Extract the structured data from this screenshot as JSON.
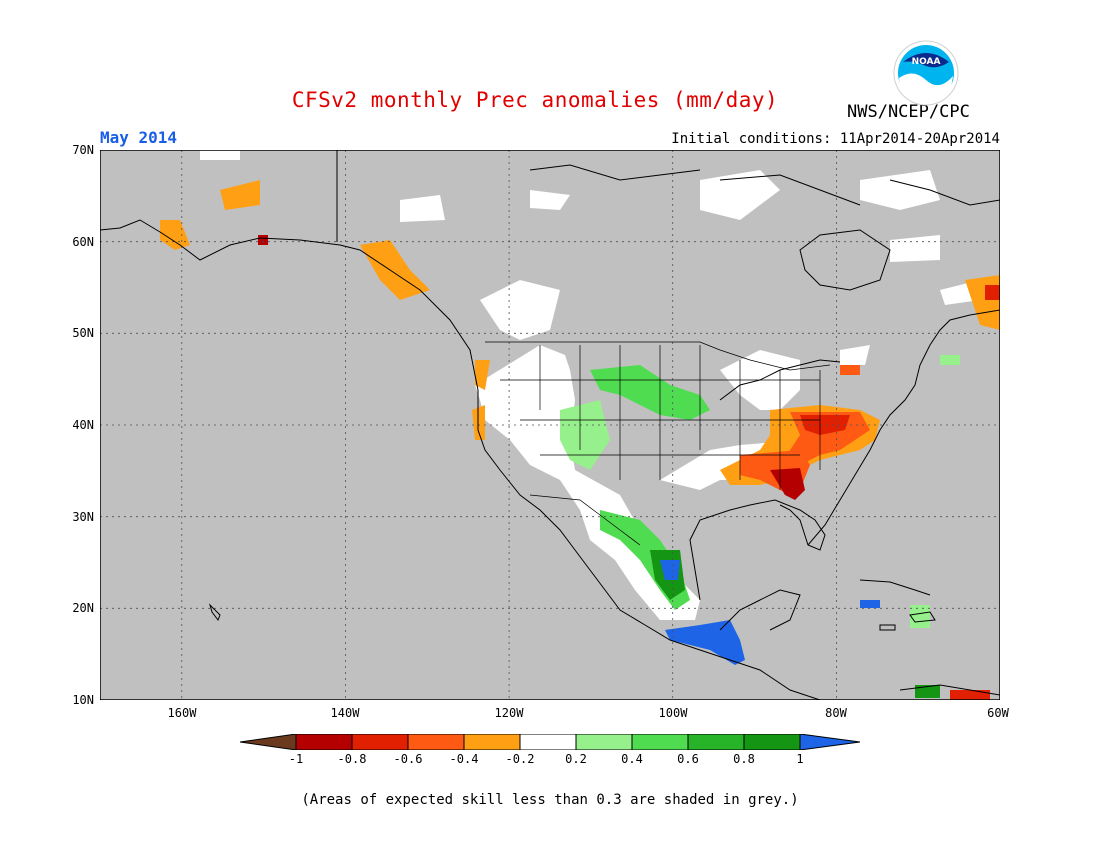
{
  "header": {
    "title": "CFSv2 monthly Prec anomalies (mm/day)",
    "period": "May 2014",
    "initial_conditions": "Initial conditions: 11Apr2014-20Apr2014",
    "agency": "NWS/NCEP/CPC",
    "logo_text": "NOAA"
  },
  "map": {
    "region": "North America",
    "projection": "lat-lon",
    "lat_labels": [
      "70N",
      "60N",
      "50N",
      "40N",
      "30N",
      "20N",
      "10N"
    ],
    "lon_labels": [
      "160W",
      "140W",
      "120W",
      "100W",
      "80W",
      "60W"
    ],
    "background_color": "#c0c0c0",
    "grid": "dotted",
    "anomaly_regions": [
      {
        "area": "Ohio Valley / Mid-Atlantic",
        "category": "-0.6 to -0.8"
      },
      {
        "area": "Tennessee Valley / Georgia",
        "category": "-0.6 to -0.8"
      },
      {
        "area": "Northern Rockies / Great Plains",
        "category": "0.4 to 0.8"
      },
      {
        "area": "Southern Mexico / Central America",
        "category": "> 1"
      },
      {
        "area": "Alaska / British Columbia coast",
        "category": "-0.2 to -0.6"
      }
    ]
  },
  "colorbar": {
    "labels": [
      "-1",
      "-0.8",
      "-0.6",
      "-0.4",
      "-0.2",
      "0.2",
      "0.4",
      "0.6",
      "0.8",
      "1"
    ],
    "colors": [
      "#6b3a1e",
      "#b40000",
      "#e02000",
      "#ff5a14",
      "#ffa014",
      "#ffffff",
      "#96f08c",
      "#50dc50",
      "#28b428",
      "#149614",
      "#1e64e6"
    ]
  },
  "footer": {
    "note": "(Areas of expected skill less than 0.3 are shaded in grey.)"
  }
}
